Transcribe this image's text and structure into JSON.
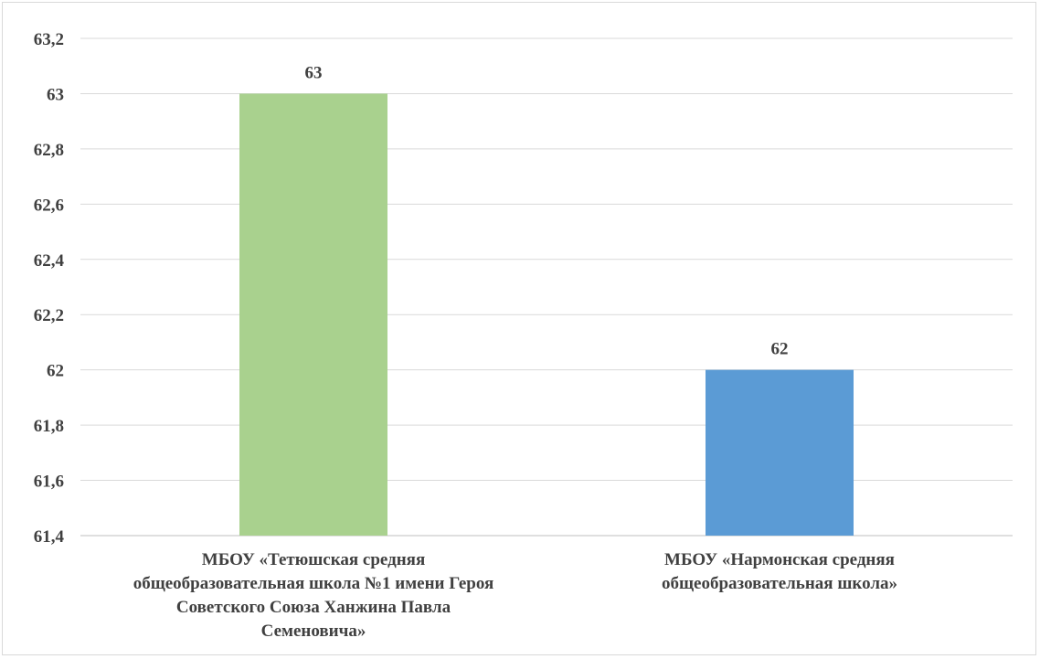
{
  "chart_data": {
    "type": "bar",
    "categories": [
      [
        "МБОУ «Тетюшская средняя",
        "общеобразовательная школа №1 имени Героя",
        "Советского Союза Ханжина Павла",
        "Семеновича»"
      ],
      [
        "МБОУ «Нармонская средняя",
        "общеобразовательная школа»"
      ]
    ],
    "values": [
      63,
      62
    ],
    "data_labels": [
      "63",
      "62"
    ],
    "colors": [
      "#a9d18e",
      "#5b9bd5"
    ],
    "ylim": [
      61.4,
      63.2
    ],
    "yticks": [
      61.4,
      61.6,
      61.8,
      62,
      62.2,
      62.4,
      62.6,
      62.8,
      63,
      63.2
    ],
    "ytick_labels": [
      "61,4",
      "61,6",
      "61,8",
      "62",
      "62,2",
      "62,4",
      "62,6",
      "62,8",
      "63",
      "63,2"
    ],
    "grid": true,
    "legend": "none",
    "title": "",
    "xlabel": "",
    "ylabel": ""
  }
}
